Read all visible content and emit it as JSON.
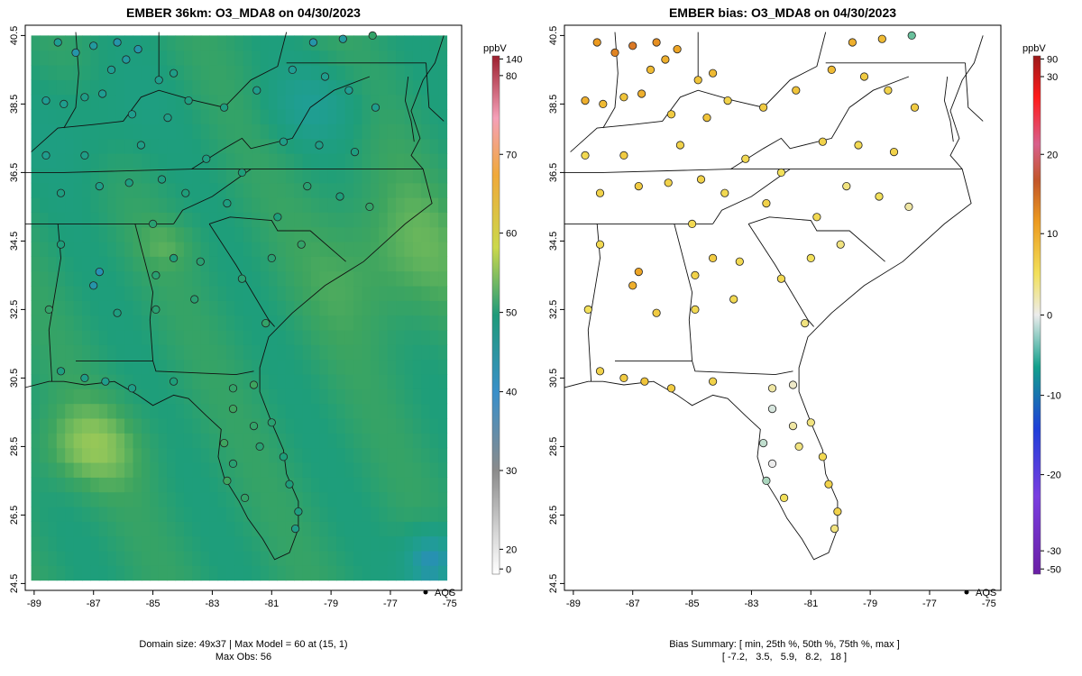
{
  "left_panel": {
    "title": "EMBER 36km: O3_MDA8 on 04/30/2023",
    "footer_line1": "Domain size: 49x37 | Max Model = 60 at (15, 1)",
    "footer_line2": "Max Obs: 56",
    "legend_label": "AQS",
    "colorbar_unit": "ppbV",
    "colorbar_ticks": [
      "140",
      "80",
      "70",
      "60",
      "50",
      "40",
      "30",
      "20",
      "0"
    ],
    "colorbar_tick_values": [
      140,
      80,
      70,
      60,
      50,
      40,
      30,
      20,
      0
    ]
  },
  "right_panel": {
    "title": "EMBER bias: O3_MDA8 on 04/30/2023",
    "footer_line1": "Bias Summary: [ min, 25th %, 50th %, 75th %, max ]",
    "footer_line2": "[ -7.2,   3.5,   5.9,   8.2,   18 ]",
    "legend_label": "AQS",
    "colorbar_unit": "ppbV",
    "colorbar_ticks": [
      "90",
      "30",
      "20",
      "10",
      "0",
      "-10",
      "-20",
      "-30",
      "-50"
    ],
    "colorbar_tick_values": [
      90,
      30,
      20,
      10,
      0,
      -10,
      -20,
      -30,
      -50
    ]
  },
  "axes": {
    "x_ticks": [
      "-89",
      "-87",
      "-85",
      "-83",
      "-81",
      "-79",
      "-77",
      "-75"
    ],
    "x_tick_values": [
      -89,
      -87,
      -85,
      -83,
      -81,
      -79,
      -77,
      -75
    ],
    "y_ticks": [
      "24.5",
      "26.5",
      "28.5",
      "30.5",
      "32.5",
      "34.5",
      "36.5",
      "38.5",
      "40.5"
    ],
    "y_tick_values": [
      24.5,
      26.5,
      28.5,
      30.5,
      32.5,
      34.5,
      36.5,
      38.5,
      40.5
    ],
    "xlim": [
      -89.3,
      -74.6
    ],
    "ylim": [
      24.3,
      40.8
    ]
  },
  "map_data": {
    "model_grid": {
      "cols": 49,
      "rows": 37,
      "lon_range": [
        -89.1,
        -75.1
      ],
      "lat_range": [
        24.6,
        40.5
      ],
      "max_model": 60,
      "units": "ppbV"
    },
    "stats": {
      "min_bias": -7.2,
      "p25": 3.5,
      "median": 5.9,
      "p75": 8.2,
      "max_bias": 18,
      "max_obs": 56
    },
    "stations": [
      {
        "lon": -88.2,
        "lat": 40.3,
        "obs": 44,
        "bias": 12
      },
      {
        "lon": -87.6,
        "lat": 40.0,
        "obs": 42,
        "bias": 14
      },
      {
        "lon": -87.0,
        "lat": 40.2,
        "obs": 43,
        "bias": 15
      },
      {
        "lon": -86.2,
        "lat": 40.3,
        "obs": 42,
        "bias": 13
      },
      {
        "lon": -85.9,
        "lat": 39.8,
        "obs": 43,
        "bias": 10
      },
      {
        "lon": -86.4,
        "lat": 39.5,
        "obs": 44,
        "bias": 9
      },
      {
        "lon": -85.5,
        "lat": 40.1,
        "obs": 42,
        "bias": 11
      },
      {
        "lon": -84.3,
        "lat": 39.4,
        "obs": 46,
        "bias": 9
      },
      {
        "lon": -84.8,
        "lat": 39.2,
        "obs": 45,
        "bias": 8
      },
      {
        "lon": -88.6,
        "lat": 38.6,
        "obs": 44,
        "bias": 10
      },
      {
        "lon": -88.0,
        "lat": 38.5,
        "obs": 45,
        "bias": 9
      },
      {
        "lon": -87.3,
        "lat": 38.7,
        "obs": 46,
        "bias": 8
      },
      {
        "lon": -86.7,
        "lat": 38.8,
        "obs": 44,
        "bias": 10
      },
      {
        "lon": -85.7,
        "lat": 38.2,
        "obs": 45,
        "bias": 7
      },
      {
        "lon": -84.5,
        "lat": 38.1,
        "obs": 46,
        "bias": 8
      },
      {
        "lon": -83.8,
        "lat": 38.6,
        "obs": 47,
        "bias": 6
      },
      {
        "lon": -82.6,
        "lat": 38.4,
        "obs": 47,
        "bias": 7
      },
      {
        "lon": -81.5,
        "lat": 38.9,
        "obs": 45,
        "bias": 8
      },
      {
        "lon": -80.3,
        "lat": 39.5,
        "obs": 44,
        "bias": 9
      },
      {
        "lon": -79.6,
        "lat": 40.3,
        "obs": 42,
        "bias": 10
      },
      {
        "lon": -78.6,
        "lat": 40.4,
        "obs": 43,
        "bias": 9
      },
      {
        "lon": -77.6,
        "lat": 40.5,
        "obs": 50,
        "bias": -6
      },
      {
        "lon": -79.2,
        "lat": 39.3,
        "obs": 45,
        "bias": 7
      },
      {
        "lon": -78.4,
        "lat": 38.9,
        "obs": 44,
        "bias": 6
      },
      {
        "lon": -77.5,
        "lat": 38.4,
        "obs": 45,
        "bias": 7
      },
      {
        "lon": -80.6,
        "lat": 37.4,
        "obs": 46,
        "bias": 6
      },
      {
        "lon": -79.4,
        "lat": 37.3,
        "obs": 46,
        "bias": 5
      },
      {
        "lon": -78.2,
        "lat": 37.1,
        "obs": 47,
        "bias": 6
      },
      {
        "lon": -79.8,
        "lat": 36.1,
        "obs": 49,
        "bias": 3
      },
      {
        "lon": -78.7,
        "lat": 35.8,
        "obs": 48,
        "bias": 4
      },
      {
        "lon": -77.7,
        "lat": 35.5,
        "obs": 50,
        "bias": 2
      },
      {
        "lon": -80.8,
        "lat": 35.2,
        "obs": 48,
        "bias": 5
      },
      {
        "lon": -82.5,
        "lat": 35.6,
        "obs": 47,
        "bias": 6
      },
      {
        "lon": -83.9,
        "lat": 35.9,
        "obs": 48,
        "bias": 5
      },
      {
        "lon": -84.7,
        "lat": 36.3,
        "obs": 47,
        "bias": 6
      },
      {
        "lon": -85.8,
        "lat": 36.2,
        "obs": 47,
        "bias": 6
      },
      {
        "lon": -86.8,
        "lat": 36.1,
        "obs": 46,
        "bias": 7
      },
      {
        "lon": -88.1,
        "lat": 35.9,
        "obs": 47,
        "bias": 6
      },
      {
        "lon": -88.6,
        "lat": 37.0,
        "obs": 45,
        "bias": 5
      },
      {
        "lon": -87.3,
        "lat": 37.0,
        "obs": 46,
        "bias": 7
      },
      {
        "lon": -85.4,
        "lat": 37.3,
        "obs": 46,
        "bias": 6
      },
      {
        "lon": -83.2,
        "lat": 36.9,
        "obs": 47,
        "bias": 5
      },
      {
        "lon": -82.0,
        "lat": 36.5,
        "obs": 48,
        "bias": 4
      },
      {
        "lon": -85.0,
        "lat": 35.0,
        "obs": 49,
        "bias": 5
      },
      {
        "lon": -84.3,
        "lat": 34.0,
        "obs": 48,
        "bias": 7
      },
      {
        "lon": -84.9,
        "lat": 33.5,
        "obs": 49,
        "bias": 6
      },
      {
        "lon": -83.4,
        "lat": 33.9,
        "obs": 49,
        "bias": 5
      },
      {
        "lon": -82.0,
        "lat": 33.4,
        "obs": 49,
        "bias": 5
      },
      {
        "lon": -81.0,
        "lat": 34.0,
        "obs": 49,
        "bias": 4
      },
      {
        "lon": -80.0,
        "lat": 34.4,
        "obs": 50,
        "bias": 3
      },
      {
        "lon": -86.8,
        "lat": 33.6,
        "obs": 41,
        "bias": 11
      },
      {
        "lon": -87.0,
        "lat": 33.2,
        "obs": 42,
        "bias": 10
      },
      {
        "lon": -86.2,
        "lat": 32.4,
        "obs": 47,
        "bias": 7
      },
      {
        "lon": -88.1,
        "lat": 34.4,
        "obs": 48,
        "bias": 5
      },
      {
        "lon": -88.5,
        "lat": 32.5,
        "obs": 50,
        "bias": 4
      },
      {
        "lon": -84.9,
        "lat": 32.5,
        "obs": 49,
        "bias": 5
      },
      {
        "lon": -83.6,
        "lat": 32.8,
        "obs": 49,
        "bias": 5
      },
      {
        "lon": -81.2,
        "lat": 32.1,
        "obs": 50,
        "bias": 3
      },
      {
        "lon": -88.1,
        "lat": 30.7,
        "obs": 47,
        "bias": 6
      },
      {
        "lon": -87.3,
        "lat": 30.5,
        "obs": 46,
        "bias": 7
      },
      {
        "lon": -86.6,
        "lat": 30.4,
        "obs": 45,
        "bias": 8
      },
      {
        "lon": -85.7,
        "lat": 30.2,
        "obs": 46,
        "bias": 7
      },
      {
        "lon": -84.3,
        "lat": 30.4,
        "obs": 48,
        "bias": 6
      },
      {
        "lon": -82.3,
        "lat": 30.2,
        "obs": 50,
        "bias": 2
      },
      {
        "lon": -81.6,
        "lat": 30.3,
        "obs": 51,
        "bias": 1
      },
      {
        "lon": -82.3,
        "lat": 29.6,
        "obs": 51,
        "bias": -1
      },
      {
        "lon": -81.6,
        "lat": 29.1,
        "obs": 50,
        "bias": 2
      },
      {
        "lon": -81.0,
        "lat": 29.2,
        "obs": 49,
        "bias": 3
      },
      {
        "lon": -82.6,
        "lat": 28.6,
        "obs": 51,
        "bias": -2
      },
      {
        "lon": -82.3,
        "lat": 28.0,
        "obs": 49,
        "bias": 0
      },
      {
        "lon": -81.4,
        "lat": 28.5,
        "obs": 49,
        "bias": 3
      },
      {
        "lon": -80.6,
        "lat": 28.2,
        "obs": 48,
        "bias": 5
      },
      {
        "lon": -82.5,
        "lat": 27.5,
        "obs": 51,
        "bias": -3
      },
      {
        "lon": -81.9,
        "lat": 27.0,
        "obs": 50,
        "bias": 4
      },
      {
        "lon": -80.4,
        "lat": 27.4,
        "obs": 48,
        "bias": 6
      },
      {
        "lon": -80.1,
        "lat": 26.6,
        "obs": 47,
        "bias": 6
      },
      {
        "lon": -80.2,
        "lat": 26.1,
        "obs": 46,
        "bias": 3
      }
    ]
  }
}
